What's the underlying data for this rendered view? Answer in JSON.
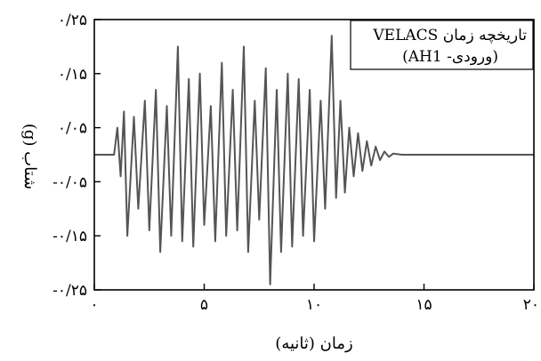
{
  "chart_data": {
    "type": "line",
    "title": "",
    "xlabel": "زمان (ثانیه)",
    "ylabel": "شتاب (g)",
    "xlim": [
      0,
      20
    ],
    "ylim": [
      -0.25,
      0.25
    ],
    "x_ticks": [
      {
        "value": 0,
        "label": "۰"
      },
      {
        "value": 5,
        "label": "۵"
      },
      {
        "value": 10,
        "label": "۱۰"
      },
      {
        "value": 15,
        "label": "۱۵"
      },
      {
        "value": 20,
        "label": "۲۰"
      }
    ],
    "y_ticks": [
      {
        "value": 0.25,
        "label": "۰/۲۵"
      },
      {
        "value": 0.15,
        "label": "۰/۱۵"
      },
      {
        "value": 0.05,
        "label": "۰/۰۵"
      },
      {
        "value": -0.05,
        "label": "-۰/۰۵"
      },
      {
        "value": -0.15,
        "label": "-۰/۱۵"
      },
      {
        "value": -0.25,
        "label": "-۰/۲۵"
      }
    ],
    "grid": false,
    "legend": {
      "placement": "top-right",
      "line1": "تاریخچه زمان VELACS",
      "line2": "(ورودی- AH1)"
    },
    "series": [
      {
        "color": "#555555",
        "x": [
          0,
          0.5,
          0.9,
          1.05,
          1.2,
          1.35,
          1.5,
          1.8,
          2.0,
          2.3,
          2.5,
          2.8,
          3.0,
          3.3,
          3.5,
          3.8,
          4.0,
          4.3,
          4.5,
          4.8,
          5.0,
          5.3,
          5.5,
          5.8,
          6.0,
          6.3,
          6.5,
          6.8,
          7.0,
          7.3,
          7.5,
          7.8,
          8.0,
          8.3,
          8.5,
          8.8,
          9.0,
          9.3,
          9.5,
          9.8,
          10.0,
          10.3,
          10.5,
          10.8,
          11.0,
          11.2,
          11.4,
          11.6,
          11.8,
          12.0,
          12.2,
          12.4,
          12.6,
          12.8,
          13.0,
          13.2,
          13.4,
          13.6,
          14.0,
          14.5,
          15,
          16,
          17,
          18,
          19,
          20
        ],
        "y": [
          0.0,
          0.0,
          0.0,
          0.05,
          -0.04,
          0.08,
          -0.15,
          0.07,
          -0.1,
          0.1,
          -0.14,
          0.12,
          -0.18,
          0.09,
          -0.15,
          0.2,
          -0.16,
          0.14,
          -0.17,
          0.15,
          -0.13,
          0.09,
          -0.16,
          0.17,
          -0.15,
          0.12,
          -0.14,
          0.2,
          -0.18,
          0.1,
          -0.12,
          0.16,
          -0.24,
          0.12,
          -0.18,
          0.15,
          -0.17,
          0.14,
          -0.15,
          0.12,
          -0.16,
          0.1,
          -0.1,
          0.22,
          -0.08,
          0.1,
          -0.07,
          0.05,
          -0.04,
          0.04,
          -0.03,
          0.025,
          -0.02,
          0.015,
          -0.01,
          0.006,
          -0.004,
          0.002,
          0.0,
          0.0,
          0.0,
          0.0,
          0.0,
          0.0,
          0.0,
          0.0
        ]
      }
    ]
  }
}
